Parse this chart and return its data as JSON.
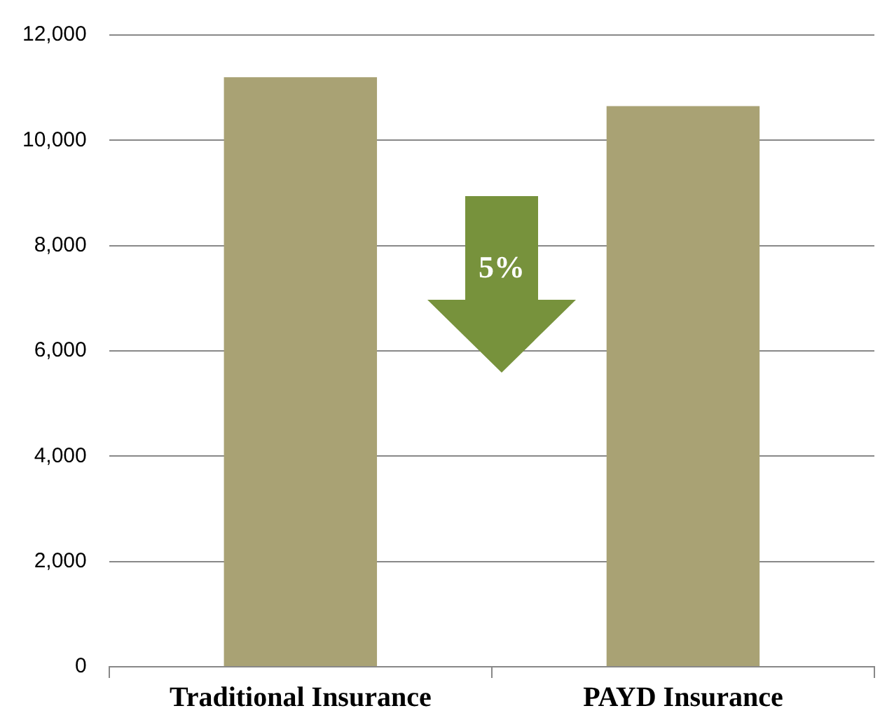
{
  "chart_data": {
    "type": "bar",
    "categories": [
      "Traditional Insurance",
      "PAYD Insurance"
    ],
    "values": [
      11200,
      10650
    ],
    "color": "#a9a274",
    "ylim": [
      0,
      12000
    ],
    "yticks": [
      {
        "value": 0,
        "label": "0"
      },
      {
        "value": 2000,
        "label": "2,000"
      },
      {
        "value": 4000,
        "label": "4,000"
      },
      {
        "value": 6000,
        "label": "6,000"
      },
      {
        "value": 8000,
        "label": "8,000"
      },
      {
        "value": 10000,
        "label": "10,000"
      },
      {
        "value": 12000,
        "label": "12,000"
      }
    ],
    "grid": "y",
    "legend": false,
    "annotations": [
      "5%"
    ]
  }
}
